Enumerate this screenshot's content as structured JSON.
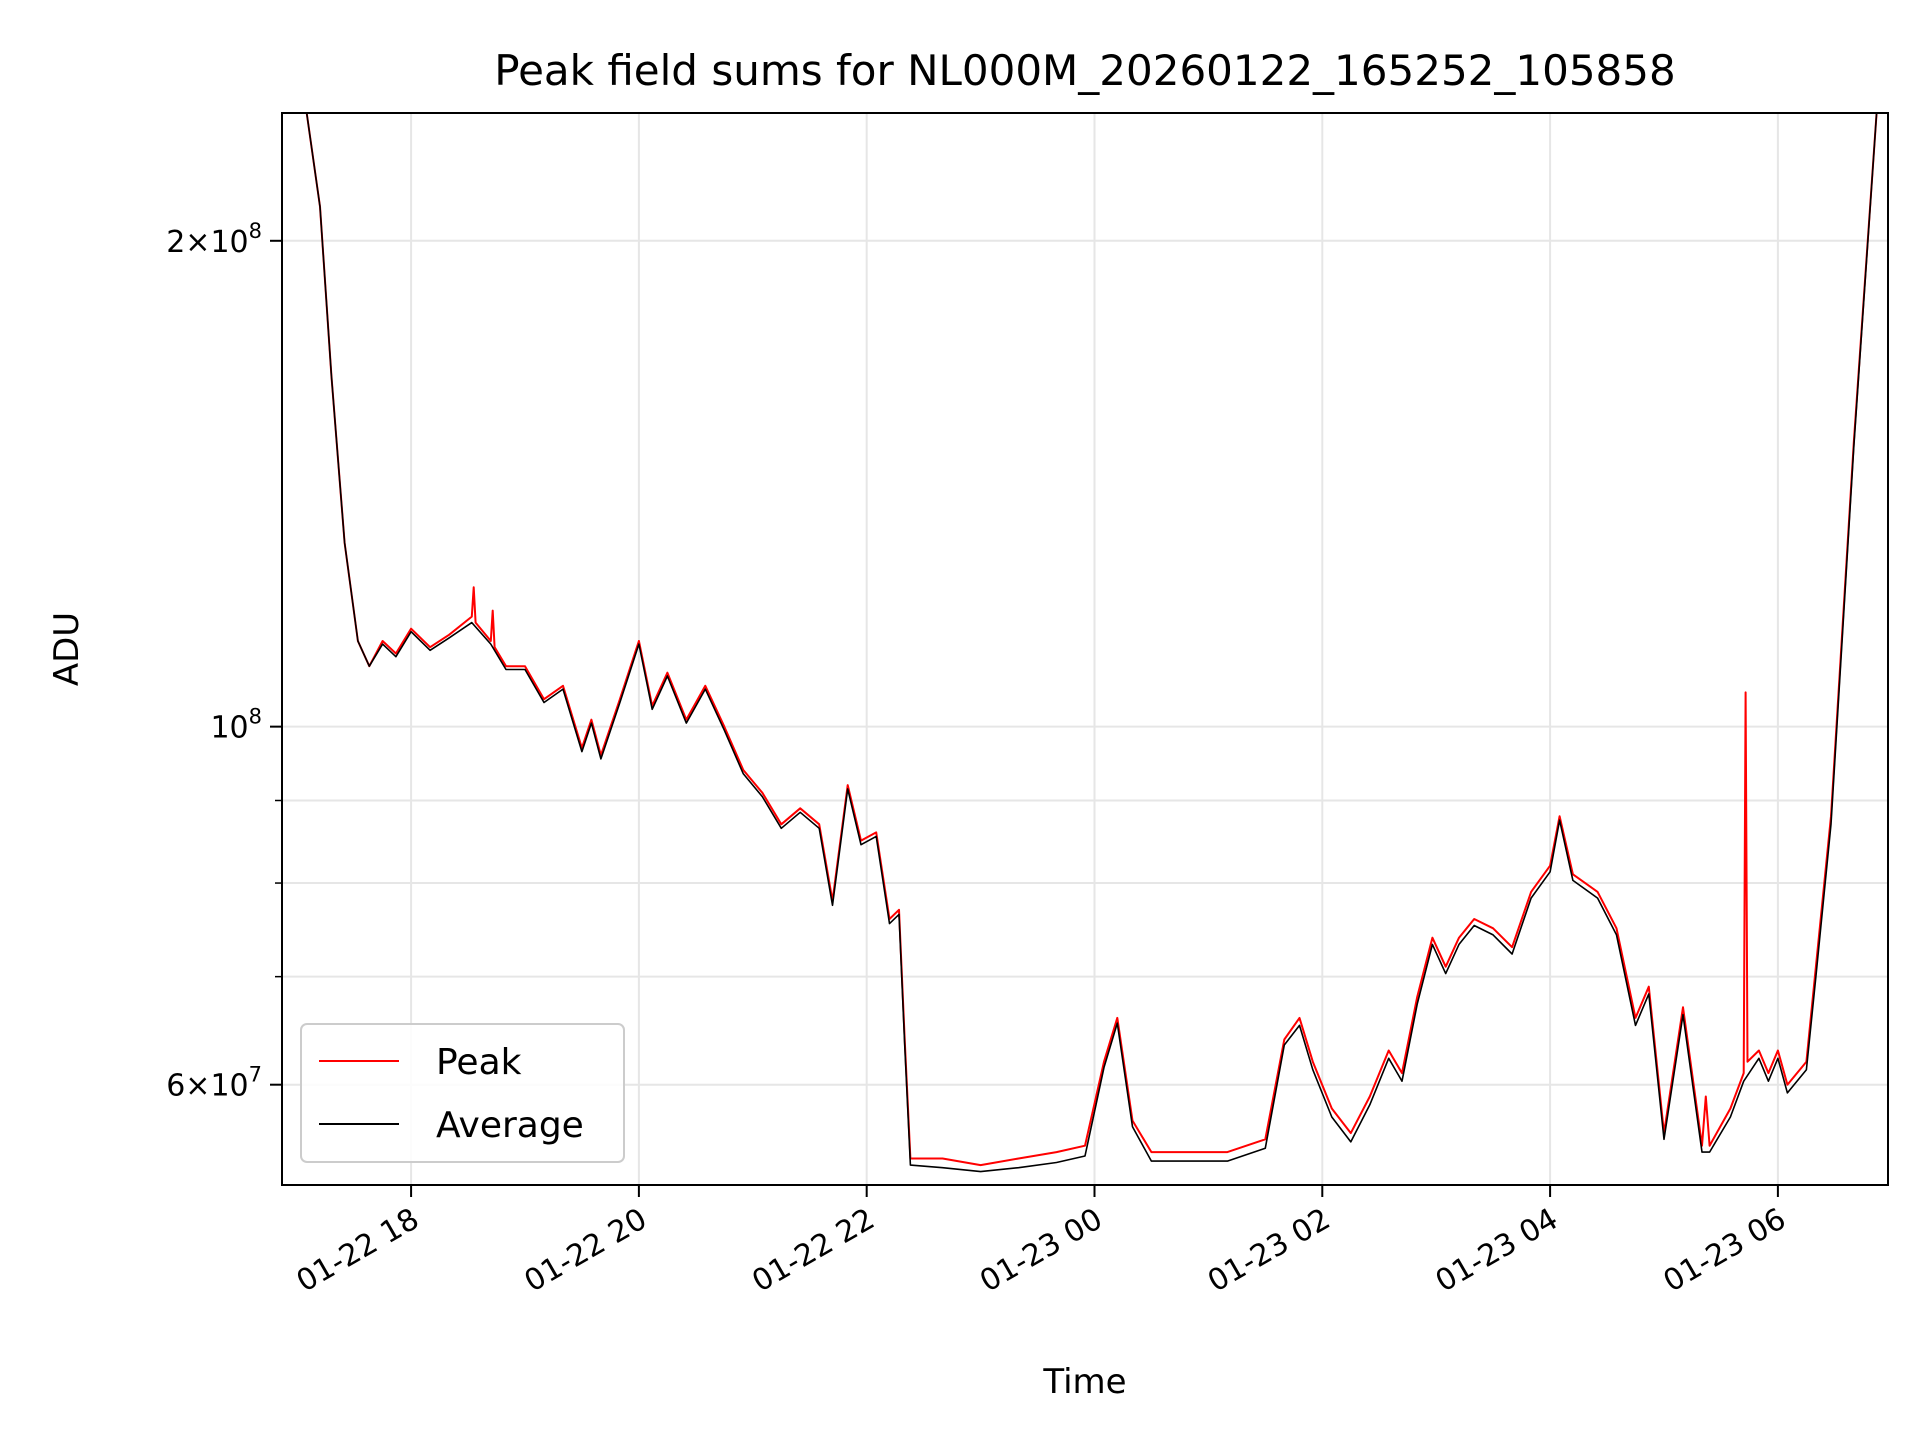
{
  "chart_data": {
    "type": "line",
    "title": "Peak field sums for NL000M_20260122_165252_105858",
    "xlabel": "Time",
    "ylabel": "ADU",
    "y_scale": "log",
    "ylim": [
      52000000,
      240000000
    ],
    "xlim": [
      "2026-01-22 16:52",
      "2026-01-23 06:58"
    ],
    "grid": true,
    "legend_position": "lower-left",
    "x_ticks": [
      {
        "t": "2026-01-22 18:00",
        "label": "01-22 18"
      },
      {
        "t": "2026-01-22 20:00",
        "label": "01-22 20"
      },
      {
        "t": "2026-01-22 22:00",
        "label": "01-22 22"
      },
      {
        "t": "2026-01-23 00:00",
        "label": "01-23 00"
      },
      {
        "t": "2026-01-23 02:00",
        "label": "01-23 02"
      },
      {
        "t": "2026-01-23 04:00",
        "label": "01-23 04"
      },
      {
        "t": "2026-01-23 06:00",
        "label": "01-23 06"
      }
    ],
    "y_major_ticks": [
      {
        "v": 60000000,
        "base": "6",
        "exp": "7"
      },
      {
        "v": 100000000,
        "base": "",
        "exp": "8"
      },
      {
        "v": 200000000,
        "base": "2",
        "exp": "8"
      }
    ],
    "y_minor_ticks": [
      70000000,
      80000000,
      90000000
    ],
    "series": [
      {
        "name": "Peak",
        "color": "#ff0000",
        "points": [
          [
            "2026-01-22 16:52",
            240000000
          ],
          [
            "2026-01-22 17:05",
            240000000
          ],
          [
            "2026-01-22 17:12",
            210000000
          ],
          [
            "2026-01-22 17:18",
            165000000
          ],
          [
            "2026-01-22 17:25",
            130000000
          ],
          [
            "2026-01-22 17:32",
            113000000
          ],
          [
            "2026-01-22 17:38",
            109000000
          ],
          [
            "2026-01-22 17:45",
            113000000
          ],
          [
            "2026-01-22 17:52",
            111000000
          ],
          [
            "2026-01-22 18:00",
            115000000
          ],
          [
            "2026-01-22 18:10",
            112000000
          ],
          [
            "2026-01-22 18:20",
            114000000
          ],
          [
            "2026-01-22 18:32",
            117000000
          ],
          [
            "2026-01-22 18:33",
            122000000
          ],
          [
            "2026-01-22 18:34",
            116000000
          ],
          [
            "2026-01-22 18:42",
            113000000
          ],
          [
            "2026-01-22 18:43",
            118000000
          ],
          [
            "2026-01-22 18:44",
            112000000
          ],
          [
            "2026-01-22 18:50",
            109000000
          ],
          [
            "2026-01-22 19:00",
            109000000
          ],
          [
            "2026-01-22 19:10",
            104000000
          ],
          [
            "2026-01-22 19:20",
            106000000
          ],
          [
            "2026-01-22 19:30",
            97000000
          ],
          [
            "2026-01-22 19:35",
            101000000
          ],
          [
            "2026-01-22 19:40",
            96000000
          ],
          [
            "2026-01-22 19:50",
            104000000
          ],
          [
            "2026-01-22 20:00",
            113000000
          ],
          [
            "2026-01-22 20:07",
            103000000
          ],
          [
            "2026-01-22 20:15",
            108000000
          ],
          [
            "2026-01-22 20:25",
            101000000
          ],
          [
            "2026-01-22 20:35",
            106000000
          ],
          [
            "2026-01-22 20:45",
            100000000
          ],
          [
            "2026-01-22 20:55",
            94000000
          ],
          [
            "2026-01-22 21:05",
            91000000
          ],
          [
            "2026-01-22 21:15",
            87000000
          ],
          [
            "2026-01-22 21:25",
            89000000
          ],
          [
            "2026-01-22 21:35",
            87000000
          ],
          [
            "2026-01-22 21:42",
            78000000
          ],
          [
            "2026-01-22 21:50",
            92000000
          ],
          [
            "2026-01-22 21:57",
            85000000
          ],
          [
            "2026-01-22 22:05",
            86000000
          ],
          [
            "2026-01-22 22:12",
            76000000
          ],
          [
            "2026-01-22 22:17",
            77000000
          ],
          [
            "2026-01-22 22:20",
            64000000
          ],
          [
            "2026-01-22 22:23",
            54000000
          ],
          [
            "2026-01-22 22:40",
            54000000
          ],
          [
            "2026-01-22 23:00",
            53500000
          ],
          [
            "2026-01-22 23:20",
            54000000
          ],
          [
            "2026-01-22 23:40",
            54500000
          ],
          [
            "2026-01-22 23:55",
            55000000
          ],
          [
            "2026-01-23 00:05",
            62000000
          ],
          [
            "2026-01-23 00:12",
            66000000
          ],
          [
            "2026-01-23 00:20",
            57000000
          ],
          [
            "2026-01-23 00:30",
            54500000
          ],
          [
            "2026-01-23 00:50",
            54500000
          ],
          [
            "2026-01-23 01:10",
            54500000
          ],
          [
            "2026-01-23 01:30",
            55500000
          ],
          [
            "2026-01-23 01:40",
            64000000
          ],
          [
            "2026-01-23 01:48",
            66000000
          ],
          [
            "2026-01-23 01:55",
            62000000
          ],
          [
            "2026-01-23 02:05",
            58000000
          ],
          [
            "2026-01-23 02:15",
            56000000
          ],
          [
            "2026-01-23 02:25",
            59000000
          ],
          [
            "2026-01-23 02:35",
            63000000
          ],
          [
            "2026-01-23 02:42",
            61000000
          ],
          [
            "2026-01-23 02:50",
            68000000
          ],
          [
            "2026-01-23 02:58",
            74000000
          ],
          [
            "2026-01-23 03:05",
            71000000
          ],
          [
            "2026-01-23 03:12",
            74000000
          ],
          [
            "2026-01-23 03:20",
            76000000
          ],
          [
            "2026-01-23 03:30",
            75000000
          ],
          [
            "2026-01-23 03:40",
            73000000
          ],
          [
            "2026-01-23 03:50",
            79000000
          ],
          [
            "2026-01-23 04:00",
            82000000
          ],
          [
            "2026-01-23 04:05",
            88000000
          ],
          [
            "2026-01-23 04:12",
            81000000
          ],
          [
            "2026-01-23 04:25",
            79000000
          ],
          [
            "2026-01-23 04:35",
            75000000
          ],
          [
            "2026-01-23 04:45",
            66000000
          ],
          [
            "2026-01-23 04:52",
            69000000
          ],
          [
            "2026-01-23 05:00",
            56000000
          ],
          [
            "2026-01-23 05:10",
            67000000
          ],
          [
            "2026-01-23 05:20",
            55000000
          ],
          [
            "2026-01-23 05:22",
            59000000
          ],
          [
            "2026-01-23 05:24",
            55000000
          ],
          [
            "2026-01-23 05:35",
            58000000
          ],
          [
            "2026-01-23 05:42",
            61000000
          ],
          [
            "2026-01-23 05:43",
            105000000
          ],
          [
            "2026-01-23 05:44",
            62000000
          ],
          [
            "2026-01-23 05:50",
            63000000
          ],
          [
            "2026-01-23 05:55",
            61000000
          ],
          [
            "2026-01-23 06:00",
            63000000
          ],
          [
            "2026-01-23 06:05",
            60000000
          ],
          [
            "2026-01-23 06:15",
            62000000
          ],
          [
            "2026-01-23 06:20",
            71000000
          ],
          [
            "2026-01-23 06:28",
            88000000
          ],
          [
            "2026-01-23 06:40",
            150000000
          ],
          [
            "2026-01-23 06:52",
            240000000
          ],
          [
            "2026-01-23 06:58",
            240000000
          ]
        ]
      },
      {
        "name": "Average",
        "color": "#000000",
        "points": [
          [
            "2026-01-22 16:52",
            240000000
          ],
          [
            "2026-01-22 17:05",
            240000000
          ],
          [
            "2026-01-22 17:12",
            210000000
          ],
          [
            "2026-01-22 17:18",
            165000000
          ],
          [
            "2026-01-22 17:25",
            130000000
          ],
          [
            "2026-01-22 17:32",
            113000000
          ],
          [
            "2026-01-22 17:38",
            109000000
          ],
          [
            "2026-01-22 17:45",
            112500000
          ],
          [
            "2026-01-22 17:52",
            110500000
          ],
          [
            "2026-01-22 18:00",
            114500000
          ],
          [
            "2026-01-22 18:10",
            111500000
          ],
          [
            "2026-01-22 18:20",
            113500000
          ],
          [
            "2026-01-22 18:32",
            116000000
          ],
          [
            "2026-01-22 18:42",
            112500000
          ],
          [
            "2026-01-22 18:50",
            108500000
          ],
          [
            "2026-01-22 19:00",
            108500000
          ],
          [
            "2026-01-22 19:10",
            103500000
          ],
          [
            "2026-01-22 19:20",
            105500000
          ],
          [
            "2026-01-22 19:30",
            96500000
          ],
          [
            "2026-01-22 19:35",
            100500000
          ],
          [
            "2026-01-22 19:40",
            95500000
          ],
          [
            "2026-01-22 19:50",
            103500000
          ],
          [
            "2026-01-22 20:00",
            112500000
          ],
          [
            "2026-01-22 20:07",
            102500000
          ],
          [
            "2026-01-22 20:15",
            107500000
          ],
          [
            "2026-01-22 20:25",
            100500000
          ],
          [
            "2026-01-22 20:35",
            105500000
          ],
          [
            "2026-01-22 20:45",
            99500000
          ],
          [
            "2026-01-22 20:55",
            93500000
          ],
          [
            "2026-01-22 21:05",
            90500000
          ],
          [
            "2026-01-22 21:15",
            86500000
          ],
          [
            "2026-01-22 21:25",
            88500000
          ],
          [
            "2026-01-22 21:35",
            86500000
          ],
          [
            "2026-01-22 21:42",
            77500000
          ],
          [
            "2026-01-22 21:50",
            91500000
          ],
          [
            "2026-01-22 21:57",
            84500000
          ],
          [
            "2026-01-22 22:05",
            85500000
          ],
          [
            "2026-01-22 22:12",
            75500000
          ],
          [
            "2026-01-22 22:17",
            76500000
          ],
          [
            "2026-01-22 22:20",
            63500000
          ],
          [
            "2026-01-22 22:23",
            53500000
          ],
          [
            "2026-01-22 22:40",
            53300000
          ],
          [
            "2026-01-22 23:00",
            53000000
          ],
          [
            "2026-01-22 23:20",
            53300000
          ],
          [
            "2026-01-22 23:40",
            53700000
          ],
          [
            "2026-01-22 23:55",
            54200000
          ],
          [
            "2026-01-23 00:05",
            61500000
          ],
          [
            "2026-01-23 00:12",
            65500000
          ],
          [
            "2026-01-23 00:20",
            56500000
          ],
          [
            "2026-01-23 00:30",
            53800000
          ],
          [
            "2026-01-23 00:50",
            53800000
          ],
          [
            "2026-01-23 01:10",
            53800000
          ],
          [
            "2026-01-23 01:30",
            54800000
          ],
          [
            "2026-01-23 01:40",
            63500000
          ],
          [
            "2026-01-23 01:48",
            65300000
          ],
          [
            "2026-01-23 01:55",
            61300000
          ],
          [
            "2026-01-23 02:05",
            57300000
          ],
          [
            "2026-01-23 02:15",
            55300000
          ],
          [
            "2026-01-23 02:25",
            58300000
          ],
          [
            "2026-01-23 02:35",
            62300000
          ],
          [
            "2026-01-23 02:42",
            60300000
          ],
          [
            "2026-01-23 02:50",
            67300000
          ],
          [
            "2026-01-23 02:58",
            73300000
          ],
          [
            "2026-01-23 03:05",
            70300000
          ],
          [
            "2026-01-23 03:12",
            73300000
          ],
          [
            "2026-01-23 03:20",
            75300000
          ],
          [
            "2026-01-23 03:30",
            74300000
          ],
          [
            "2026-01-23 03:40",
            72300000
          ],
          [
            "2026-01-23 03:50",
            78300000
          ],
          [
            "2026-01-23 04:00",
            81300000
          ],
          [
            "2026-01-23 04:05",
            87500000
          ],
          [
            "2026-01-23 04:12",
            80300000
          ],
          [
            "2026-01-23 04:25",
            78300000
          ],
          [
            "2026-01-23 04:35",
            74300000
          ],
          [
            "2026-01-23 04:45",
            65300000
          ],
          [
            "2026-01-23 04:52",
            68300000
          ],
          [
            "2026-01-23 05:00",
            55500000
          ],
          [
            "2026-01-23 05:10",
            66300000
          ],
          [
            "2026-01-23 05:20",
            54500000
          ],
          [
            "2026-01-23 05:24",
            54500000
          ],
          [
            "2026-01-23 05:35",
            57300000
          ],
          [
            "2026-01-23 05:42",
            60300000
          ],
          [
            "2026-01-23 05:50",
            62300000
          ],
          [
            "2026-01-23 05:55",
            60300000
          ],
          [
            "2026-01-23 06:00",
            62300000
          ],
          [
            "2026-01-23 06:05",
            59300000
          ],
          [
            "2026-01-23 06:15",
            61300000
          ],
          [
            "2026-01-23 06:20",
            70000000
          ],
          [
            "2026-01-23 06:28",
            87000000
          ],
          [
            "2026-01-23 06:40",
            149000000
          ],
          [
            "2026-01-23 06:52",
            240000000
          ],
          [
            "2026-01-23 06:58",
            240000000
          ]
        ]
      }
    ]
  }
}
